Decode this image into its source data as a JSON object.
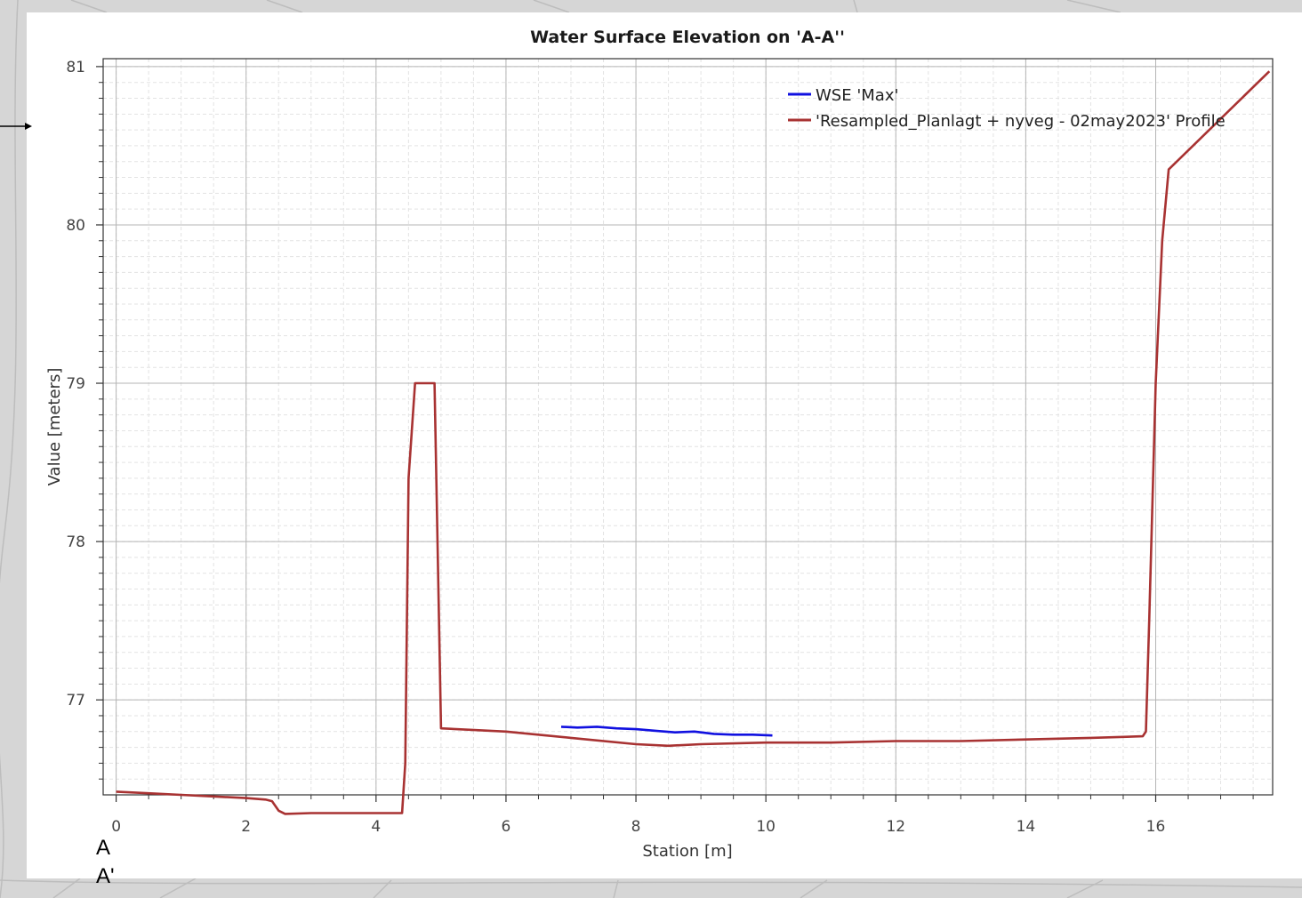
{
  "map_labels": {
    "point_a": "A",
    "point_a_prime": "A'"
  },
  "chart_data": {
    "type": "line",
    "title": "Water Surface Elevation on 'A-A''",
    "xlabel": "Station [m]",
    "ylabel": "Value [meters]",
    "xlim": [
      -0.2,
      17.8
    ],
    "ylim": [
      76.4,
      81.05
    ],
    "xticks": [
      0,
      2,
      4,
      6,
      8,
      10,
      12,
      14,
      16
    ],
    "yticks": [
      77,
      78,
      79,
      80,
      81
    ],
    "grid": true,
    "legend_position": "top-right",
    "series": [
      {
        "name": "WSE 'Max'",
        "color": "#1010e0",
        "x": [
          6.85,
          7.1,
          7.4,
          7.7,
          8.0,
          8.3,
          8.6,
          8.9,
          9.2,
          9.5,
          9.8,
          10.1
        ],
        "y": [
          76.83,
          76.825,
          76.83,
          76.82,
          76.815,
          76.805,
          76.795,
          76.8,
          76.785,
          76.78,
          76.78,
          76.775
        ]
      },
      {
        "name": "'Resampled_Planlagt + nyveg - 02may2023' Profile",
        "color": "#a83232",
        "x": [
          0,
          0.5,
          1.0,
          1.5,
          2.0,
          2.3,
          2.4,
          2.5,
          2.6,
          3.0,
          4.4,
          4.45,
          4.5,
          4.6,
          4.9,
          5.0,
          6.0,
          7.0,
          8.0,
          8.5,
          9.0,
          10.0,
          11.0,
          12.0,
          13.0,
          14.0,
          15.0,
          15.8,
          15.85,
          15.9,
          16.0,
          16.1,
          16.2,
          17.75
        ],
        "y": [
          76.42,
          76.41,
          76.4,
          76.39,
          76.38,
          76.37,
          76.36,
          76.3,
          76.28,
          76.285,
          76.285,
          76.6,
          78.4,
          79.0,
          79.0,
          76.82,
          76.8,
          76.76,
          76.72,
          76.71,
          76.72,
          76.73,
          76.73,
          76.74,
          76.74,
          76.75,
          76.76,
          76.77,
          76.8,
          77.5,
          79.0,
          79.9,
          80.35,
          80.97
        ]
      }
    ]
  }
}
